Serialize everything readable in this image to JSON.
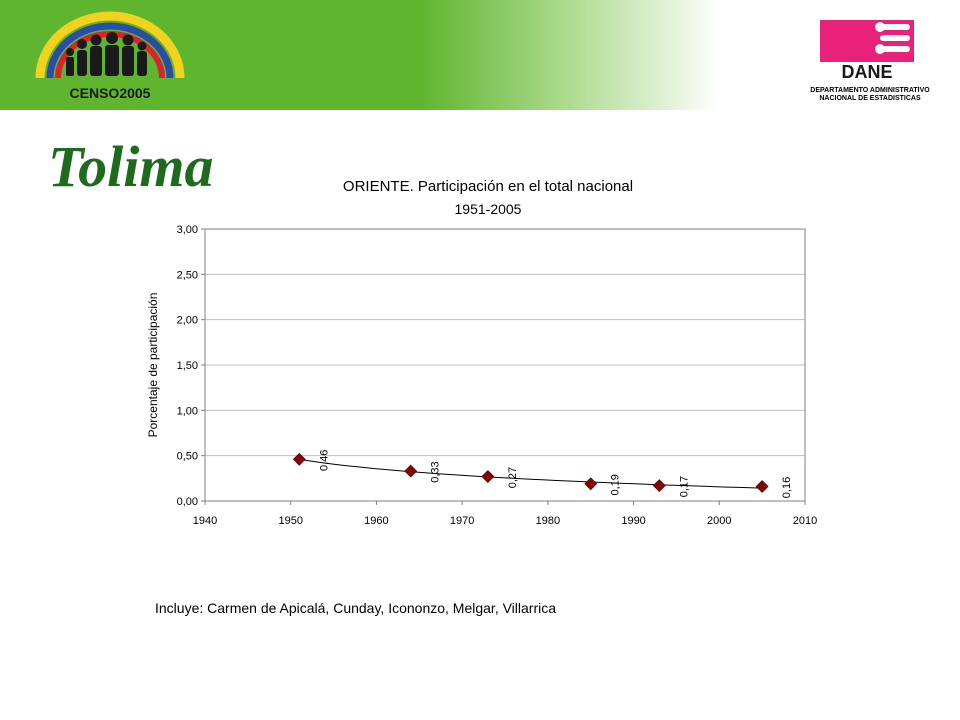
{
  "header": {
    "censo_logo_text": "CENSO2005",
    "dane_logo_text": "DANE",
    "dane_subtitle_line1": "DEPARTAMENTO ADMINISTRATIVO",
    "dane_subtitle_line2": "NACIONAL DE ESTADISTICAS",
    "brand_green": "#5fb52e",
    "dane_magenta": "#e8217a"
  },
  "region_title": "Tolima",
  "footnote": "Incluye: Carmen de Apicalá, Cunday, Icononzo, Melgar, Villarrica",
  "chart_data": {
    "type": "scatter",
    "title": "ORIENTE. Participación en el total nacional",
    "subtitle": "1951-2005",
    "xlabel": "",
    "ylabel": "Porcentaje de participación",
    "xlim": [
      1940,
      2010
    ],
    "ylim": [
      0,
      3
    ],
    "x_ticks": [
      "1940",
      "1950",
      "1960",
      "1970",
      "1980",
      "1990",
      "2000",
      "2010"
    ],
    "y_ticks": [
      "0,00",
      "0,50",
      "1,00",
      "1,50",
      "2,00",
      "2,50",
      "3,00"
    ],
    "grid": true,
    "legend": "none",
    "trendline": true,
    "series": [
      {
        "x": [
          1951,
          1964,
          1973,
          1985,
          1993,
          2005
        ],
        "y": [
          0.46,
          0.33,
          0.27,
          0.19,
          0.17,
          0.16
        ],
        "labels": [
          "0,46",
          "0,33",
          "0,27",
          "0,19",
          "0,17",
          "0,16"
        ],
        "color": "#8b0000"
      }
    ]
  }
}
